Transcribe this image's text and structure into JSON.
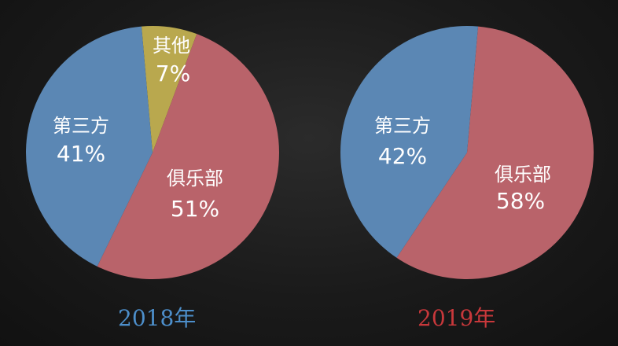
{
  "chart_data": [
    {
      "type": "pie",
      "title": "2018年",
      "slices": [
        {
          "label": "其他",
          "value": 7,
          "value_label": "7%",
          "color": "#b9a84e"
        },
        {
          "label": "俱乐部",
          "value": 51,
          "value_label": "51%",
          "color": "#b9636a"
        },
        {
          "label": "第三方",
          "value": 41,
          "value_label": "41%",
          "color": "#5b87b4"
        }
      ]
    },
    {
      "type": "pie",
      "title": "2019年",
      "slices": [
        {
          "label": "俱乐部",
          "value": 58,
          "value_label": "58%",
          "color": "#b9636a"
        },
        {
          "label": "第三方",
          "value": 42,
          "value_label": "42%",
          "color": "#5b87b4"
        }
      ]
    }
  ],
  "year_colors": [
    "#4d8fcb",
    "#c8383b"
  ]
}
